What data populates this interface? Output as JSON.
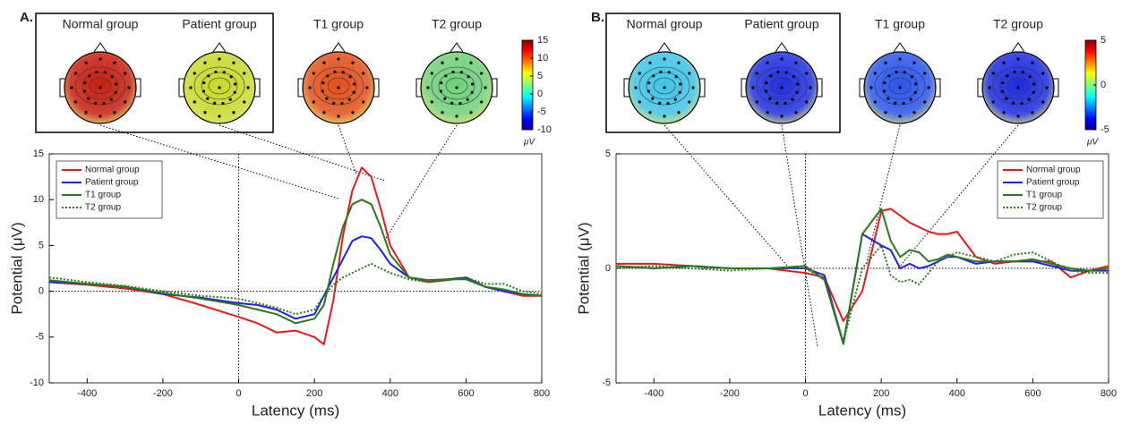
{
  "chart_data": [
    {
      "type": "line",
      "panel_label": "A.",
      "x_label": "Latency (ms)",
      "y_label": "Potential (μV)",
      "x": [
        -500,
        -400,
        -300,
        -200,
        -100,
        0,
        50,
        100,
        150,
        200,
        225,
        250,
        275,
        300,
        325,
        350,
        375,
        400,
        450,
        500,
        550,
        600,
        650,
        700,
        750,
        800
      ],
      "series": [
        {
          "name": "Normal group",
          "color": "#e8191c",
          "style": "solid",
          "values": [
            1,
            0.7,
            0.3,
            -0.3,
            -1.5,
            -2.8,
            -3.5,
            -4.5,
            -4.3,
            -5,
            -5.8,
            -1,
            6,
            11,
            13.5,
            12.5,
            9,
            5,
            1.5,
            1,
            1.2,
            1.5,
            0.5,
            0,
            -0.5,
            -0.5
          ]
        },
        {
          "name": "Patient group",
          "color": "#1f1fef",
          "style": "solid",
          "values": [
            1,
            0.8,
            0.5,
            -0.3,
            -0.7,
            -1.3,
            -1.5,
            -2,
            -3,
            -2.5,
            -0.5,
            1.5,
            3.5,
            5.5,
            6,
            5.8,
            4.5,
            3,
            1.5,
            1.2,
            1.3,
            1.5,
            0.5,
            0,
            -0.3,
            -0.5
          ]
        },
        {
          "name": "T1 group",
          "color": "#2a7a1a",
          "style": "solid",
          "values": [
            1.2,
            0.8,
            0.5,
            -0.2,
            -0.8,
            -1.5,
            -2,
            -2.5,
            -3.5,
            -3,
            -1.5,
            3,
            7,
            9.5,
            10,
            9.5,
            7,
            4,
            1.5,
            1.2,
            1.3,
            1.3,
            0.5,
            0.2,
            -0.3,
            -0.5
          ]
        },
        {
          "name": "T2 group",
          "color": "#2a7a1a",
          "style": "dotted",
          "values": [
            1.5,
            1,
            0.6,
            0,
            -0.5,
            -0.8,
            -1.3,
            -1.8,
            -2.5,
            -2,
            -0.5,
            0.7,
            1.5,
            2,
            2.5,
            3,
            2.5,
            2,
            1.3,
            1,
            1.2,
            1.5,
            0.8,
            0.8,
            0,
            -0.3
          ]
        }
      ],
      "xlim": [
        -500,
        800
      ],
      "xticks": [
        -400,
        -200,
        0,
        200,
        400,
        600,
        800
      ],
      "ylim": [
        -10,
        15
      ],
      "yticks": [
        -10,
        -5,
        0,
        5,
        10,
        15
      ],
      "legend": "top-left",
      "topomaps": [
        {
          "label": "Normal group",
          "color": "#c81e10"
        },
        {
          "label": "Patient group",
          "color": "#c8d82a"
        },
        {
          "label": "T1 group",
          "color": "#e2501a"
        },
        {
          "label": "T2 group",
          "color": "#6fd07a"
        }
      ],
      "colorbar": {
        "lim": [
          -10,
          15
        ],
        "ticks": [
          15,
          10,
          5,
          0,
          -5,
          -10
        ],
        "label": "μV"
      }
    },
    {
      "type": "line",
      "panel_label": "B.",
      "x_label": "Latency (ms)",
      "y_label": "Potential (μV)",
      "x": [
        -500,
        -400,
        -300,
        -200,
        -100,
        0,
        50,
        100,
        150,
        200,
        225,
        250,
        275,
        300,
        325,
        350,
        375,
        400,
        450,
        500,
        550,
        600,
        650,
        700,
        750,
        800
      ],
      "series": [
        {
          "name": "Normal group",
          "color": "#e8191c",
          "style": "solid",
          "values": [
            0.2,
            0.2,
            0.1,
            0,
            0,
            -0.2,
            -0.4,
            -2.3,
            -1,
            2.5,
            2.6,
            2.3,
            2,
            1.8,
            1.6,
            1.5,
            1.5,
            1.6,
            0.5,
            0.2,
            0.3,
            0.3,
            0.3,
            -0.4,
            -0.1,
            0.1
          ]
        },
        {
          "name": "Patient group",
          "color": "#1f1fef",
          "style": "solid",
          "values": [
            0.1,
            0,
            0.1,
            0,
            0,
            0,
            -0.3,
            -3.3,
            1.5,
            1,
            0.8,
            0,
            0.2,
            0,
            0.1,
            0.3,
            0.5,
            0.5,
            0.2,
            0.3,
            0.3,
            0.3,
            0.1,
            -0.1,
            -0.1,
            -0.1
          ]
        },
        {
          "name": "T1 group",
          "color": "#2a7a1a",
          "style": "solid",
          "values": [
            0.1,
            0,
            0.1,
            0,
            0,
            0.1,
            -0.5,
            -3.3,
            1.5,
            2.6,
            1.2,
            0.5,
            0.8,
            0.7,
            0.3,
            0.4,
            0.6,
            0.5,
            0.3,
            0.3,
            0.3,
            0.4,
            0.2,
            0,
            -0.1,
            0
          ]
        },
        {
          "name": "T2 group",
          "color": "#2a7a1a",
          "style": "dotted",
          "values": [
            0,
            0.1,
            0,
            -0.1,
            0,
            0,
            -0.5,
            -3.2,
            0,
            1,
            -0.3,
            -0.6,
            -0.5,
            -0.7,
            -0.2,
            0.3,
            0.5,
            0.7,
            0.5,
            0.3,
            0.6,
            0.7,
            0.3,
            -0.1,
            -0.2,
            -0.2
          ]
        }
      ],
      "xlim": [
        -500,
        800
      ],
      "xticks": [
        -400,
        -200,
        0,
        200,
        400,
        600,
        800
      ],
      "ylim": [
        -5,
        5
      ],
      "yticks": [
        -5,
        0,
        5
      ],
      "legend": "top-right",
      "topomaps": [
        {
          "label": "Normal group",
          "color": "#3fc4e8"
        },
        {
          "label": "Patient group",
          "color": "#2030e0"
        },
        {
          "label": "T1 group",
          "color": "#2a55ee"
        },
        {
          "label": "T2 group",
          "color": "#1c2ce0"
        }
      ],
      "colorbar": {
        "lim": [
          -5,
          5
        ],
        "ticks": [
          5,
          0,
          -5
        ],
        "label": "μV"
      }
    }
  ]
}
